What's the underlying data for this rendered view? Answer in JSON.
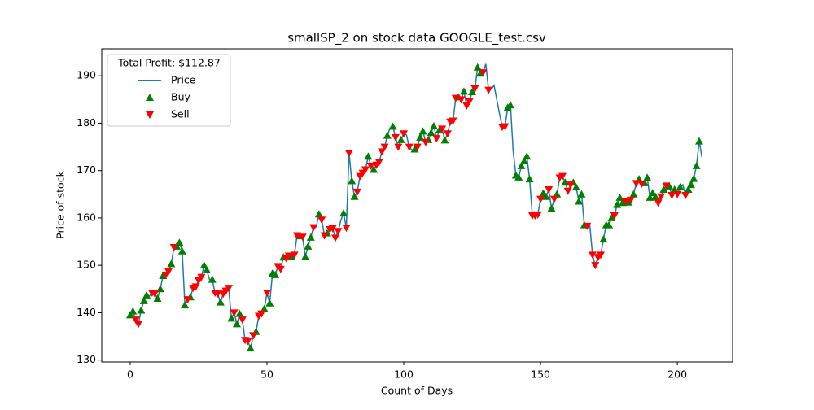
{
  "chart_data": {
    "type": "line",
    "title": "smallSP_2 on stock data GOOGLE_test.csv",
    "x_label": "Count of Days",
    "y_label": "Price of stock",
    "legend_title": "Total Profit: $112.87",
    "legend_position": "upper left",
    "xlim": [
      -10.4,
      220.2
    ],
    "ylim": [
      129.6,
      195.7
    ],
    "xticks": [
      0,
      50,
      100,
      150,
      200
    ],
    "yticks": [
      130,
      140,
      150,
      160,
      170,
      180,
      190
    ],
    "series": [
      {
        "name": "Price",
        "color": "#1f77b4",
        "values": [
          139.5,
          140.3,
          138.5,
          137.6,
          140.5,
          142.5,
          143.7,
          143.5,
          144.2,
          144.0,
          143.0,
          145.0,
          147.8,
          148.0,
          148.7,
          150.3,
          153.8,
          154.0,
          154.8,
          153.0,
          141.6,
          142.8,
          143.3,
          145.2,
          145.5,
          146.8,
          147.5,
          150.0,
          149.0,
          147.0,
          147.0,
          144.2,
          144.0,
          142.2,
          144.0,
          144.6,
          145.2,
          138.8,
          140.0,
          137.6,
          139.8,
          138.5,
          134.2,
          134.0,
          132.5,
          135.2,
          136.0,
          139.3,
          139.8,
          140.8,
          144.2,
          142.0,
          148.3,
          148.0,
          149.8,
          149.2,
          151.7,
          151.5,
          152.0,
          151.8,
          152.2,
          156.3,
          156.2,
          156.0,
          151.8,
          154.0,
          155.9,
          158.0,
          158.1,
          160.8,
          159.6,
          156.3,
          156.8,
          157.6,
          157.8,
          155.8,
          157.2,
          159.5,
          161.0,
          157.9,
          173.7,
          167.8,
          164.5,
          165.5,
          168.8,
          169.5,
          170.2,
          173.0,
          171.0,
          170.2,
          171.2,
          171.8,
          174.0,
          175.0,
          177.4,
          179.0,
          179.3,
          177.0,
          175.0,
          176.5,
          177.8,
          177.5,
          175.0,
          174.3,
          174.5,
          175.0,
          177.0,
          178.3,
          176.0,
          176.5,
          178.0,
          179.4,
          176.8,
          178.5,
          178.8,
          176.4,
          177.8,
          180.3,
          180.5,
          185.3,
          185.5,
          185.0,
          186.7,
          183.7,
          184.6,
          186.6,
          187.3,
          191.8,
          190.5,
          190.7,
          192.5,
          187.0,
          187.2,
          188.0,
          185.0,
          182.0,
          179.2,
          179.3,
          183.3,
          183.8,
          174.0,
          169.0,
          168.6,
          171.0,
          172.0,
          173.0,
          168.2,
          160.5,
          160.5,
          160.7,
          164.0,
          165.2,
          164.5,
          166.0,
          162.0,
          164.0,
          165.0,
          168.5,
          168.8,
          167.5,
          165.7,
          167.0,
          167.5,
          166.5,
          163.5,
          165.0,
          158.5,
          158.3,
          158.5,
          152.2,
          150.0,
          151.7,
          152.2,
          155.5,
          158.5,
          158.5,
          160.0,
          160.5,
          162.8,
          164.3,
          163.2,
          163.5,
          163.3,
          163.8,
          165.0,
          167.3,
          168.2,
          167.2,
          167.4,
          168.5,
          164.3,
          165.3,
          164.5,
          163.2,
          164.5,
          166.0,
          166.8,
          166.7,
          164.8,
          166.0,
          165.0,
          166.5,
          167.0,
          164.8,
          166.0,
          167.0,
          168.3,
          171.0,
          176.2,
          172.8
        ]
      },
      {
        "name": "Buy",
        "color": "green",
        "marker": "^",
        "x": [
          0,
          1,
          4,
          5,
          6,
          10,
          11,
          12,
          15,
          17,
          18,
          19,
          20,
          22,
          27,
          28,
          30,
          33,
          37,
          39,
          40,
          44,
          46,
          49,
          51,
          52,
          53,
          56,
          59,
          62,
          64,
          65,
          66,
          69,
          72,
          78,
          81,
          82,
          87,
          89,
          94,
          96,
          99,
          104,
          106,
          107,
          109,
          110,
          111,
          113,
          115,
          120,
          122,
          125,
          127,
          128,
          138,
          139,
          141,
          142,
          143,
          144,
          145,
          146,
          151,
          152,
          154,
          156,
          159,
          162,
          163,
          164,
          165,
          166,
          173,
          174,
          175,
          176,
          178,
          179,
          180,
          182,
          184,
          186,
          188,
          189,
          190,
          191,
          192,
          195,
          197,
          199,
          201,
          204,
          205,
          206,
          207,
          208
        ]
      },
      {
        "name": "Sell",
        "color": "red",
        "marker": "v",
        "x": [
          2,
          3,
          8,
          9,
          13,
          14,
          16,
          21,
          23,
          24,
          25,
          26,
          31,
          32,
          34,
          35,
          36,
          38,
          41,
          42,
          43,
          45,
          47,
          48,
          50,
          54,
          55,
          57,
          58,
          60,
          61,
          63,
          67,
          70,
          71,
          73,
          74,
          75,
          76,
          79,
          80,
          83,
          84,
          85,
          86,
          88,
          90,
          91,
          92,
          93,
          97,
          98,
          100,
          102,
          105,
          108,
          112,
          114,
          116,
          117,
          118,
          119,
          121,
          123,
          124,
          126,
          129,
          131,
          136,
          137,
          147,
          148,
          149,
          150,
          153,
          155,
          157,
          158,
          160,
          161,
          167,
          169,
          170,
          171,
          172,
          177,
          181,
          183,
          185,
          187,
          193,
          194,
          196,
          198,
          200,
          203
        ]
      }
    ]
  }
}
